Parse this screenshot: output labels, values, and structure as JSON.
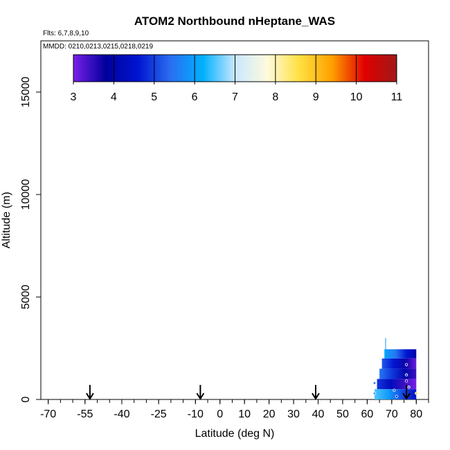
{
  "chart_data": {
    "type": "heatmap",
    "title": "ATOM2 Northbound nHeptane_WAS",
    "flights_label": "Flts: 6,7,8,9,10",
    "dates_label": "MMDD: 0210,0213,0215,0218,0219",
    "xlabel": "Latitude (deg N)",
    "ylabel": "Altitude (m)",
    "xlim": [
      -73,
      85
    ],
    "ylim": [
      0,
      17500
    ],
    "x_ticks": [
      -70,
      -55,
      -40,
      -25,
      -10,
      0,
      10,
      20,
      30,
      40,
      50,
      60,
      70,
      80
    ],
    "y_ticks": [
      0,
      5000,
      10000,
      15000
    ],
    "colorbar": {
      "range": [
        3,
        11
      ],
      "ticks": [
        3,
        4,
        5,
        6,
        7,
        8,
        9,
        10,
        11
      ],
      "colors": [
        "#7a1fe8",
        "#00009c",
        "#0014d0",
        "#2a6ef0",
        "#00b0ff",
        "#c8e8ff",
        "#fffadc",
        "#ffe040",
        "#ffa000",
        "#e00000",
        "#a01818"
      ]
    },
    "arrows_lat": [
      -53,
      -8,
      39,
      76
    ],
    "data_cells": [
      {
        "lat_min": 67,
        "lat_max": 80,
        "alt_min": 2000,
        "alt_max": 2450,
        "value": 5.2
      },
      {
        "lat_min": 66,
        "lat_max": 80,
        "alt_min": 1500,
        "alt_max": 2000,
        "value": 4.3
      },
      {
        "lat_min": 65,
        "lat_max": 80,
        "alt_min": 1000,
        "alt_max": 1500,
        "value": 4.6
      },
      {
        "lat_min": 64,
        "lat_max": 80,
        "alt_min": 500,
        "alt_max": 1000,
        "value": 4.0
      },
      {
        "lat_min": 63,
        "lat_max": 80,
        "alt_min": 0,
        "alt_max": 500,
        "value": 5.6
      }
    ],
    "points": [
      {
        "lat": 63,
        "alt": 800,
        "value": 5.5
      },
      {
        "lat": 63,
        "alt": 300,
        "value": 5.8
      },
      {
        "lat": 71,
        "alt": 450,
        "value": 5.2
      },
      {
        "lat": 72,
        "alt": 150,
        "value": 4.8
      },
      {
        "lat": 76,
        "alt": 1700,
        "value": 4.5
      },
      {
        "lat": 76,
        "alt": 1200,
        "value": 5.0
      },
      {
        "lat": 76,
        "alt": 900,
        "value": 4.2
      },
      {
        "lat": 77,
        "alt": 600,
        "value": 5.4
      },
      {
        "lat": 80,
        "alt": 300,
        "value": 8.8
      }
    ]
  }
}
